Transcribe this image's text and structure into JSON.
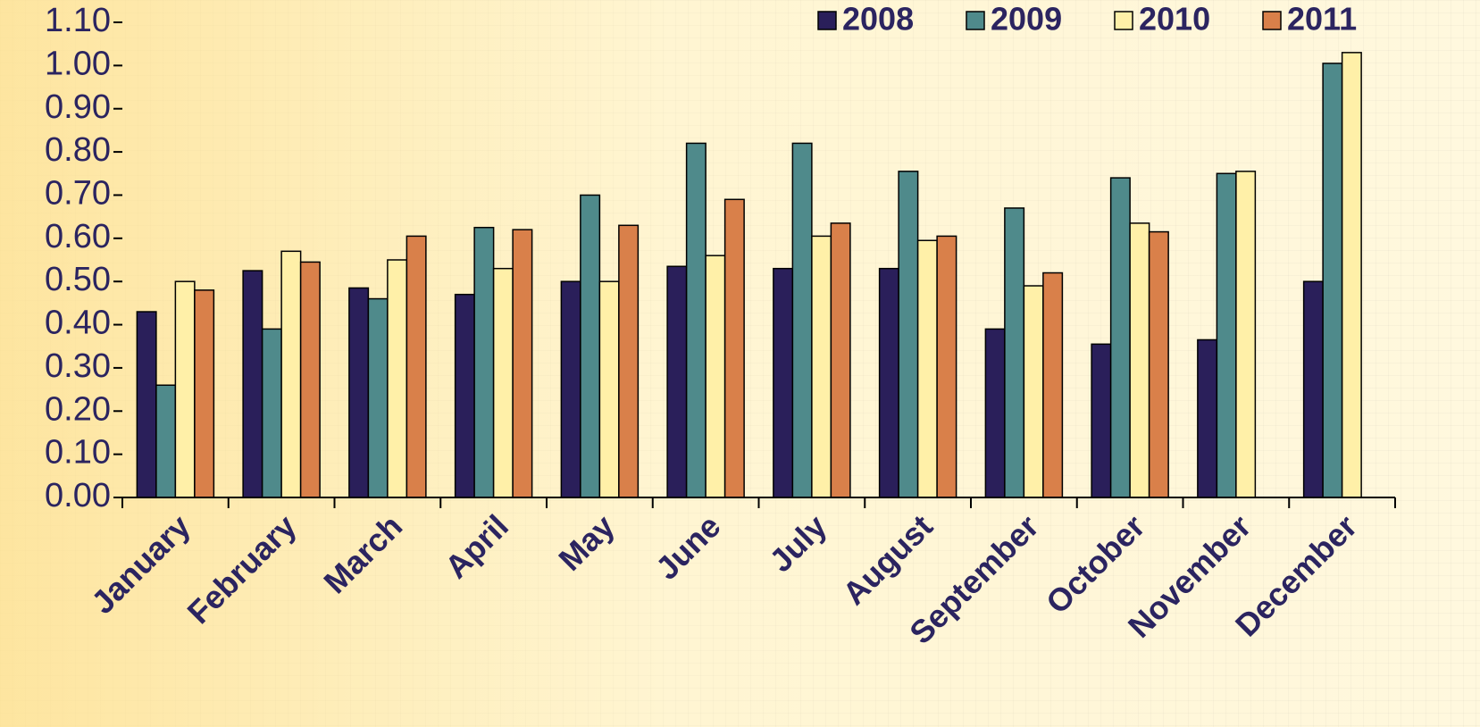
{
  "chart_data": {
    "type": "bar",
    "categories": [
      "January",
      "February",
      "March",
      "April",
      "May",
      "June",
      "July",
      "August",
      "September",
      "October",
      "November",
      "December"
    ],
    "series": [
      {
        "name": "2008",
        "color": "#2a1f5a",
        "values": [
          0.43,
          0.525,
          0.485,
          0.47,
          0.5,
          0.535,
          0.53,
          0.53,
          0.39,
          0.355,
          0.365,
          0.5
        ]
      },
      {
        "name": "2009",
        "color": "#4f8a8b",
        "values": [
          0.26,
          0.39,
          0.46,
          0.625,
          0.7,
          0.82,
          0.82,
          0.755,
          0.67,
          0.74,
          0.75,
          1.005
        ]
      },
      {
        "name": "2010",
        "color": "#fff0a8",
        "values": [
          0.5,
          0.57,
          0.55,
          0.53,
          0.5,
          0.56,
          0.605,
          0.595,
          0.49,
          0.635,
          0.755,
          1.03
        ]
      },
      {
        "name": "2011",
        "color": "#d9804a",
        "values": [
          0.48,
          0.545,
          0.605,
          0.62,
          0.63,
          0.69,
          0.635,
          0.605,
          0.52,
          0.615,
          null,
          null
        ]
      }
    ],
    "ylim": [
      0,
      1.1
    ],
    "yticks": [
      {
        "value": 0,
        "label": "0.00"
      },
      {
        "value": 0.1,
        "label": "0.10"
      },
      {
        "value": 0.2,
        "label": "0.20"
      },
      {
        "value": 0.3,
        "label": "0.30"
      },
      {
        "value": 0.4,
        "label": "0.40"
      },
      {
        "value": 0.5,
        "label": "0.50"
      },
      {
        "value": 0.6,
        "label": "0.60"
      },
      {
        "value": 0.7,
        "label": "0.70"
      },
      {
        "value": 0.8,
        "label": "0.80"
      },
      {
        "value": 0.9,
        "label": "0.90"
      },
      {
        "value": 1.0,
        "label": "1.00"
      },
      {
        "value": 1.1,
        "label": "1.10"
      }
    ],
    "legend": "top-right"
  }
}
